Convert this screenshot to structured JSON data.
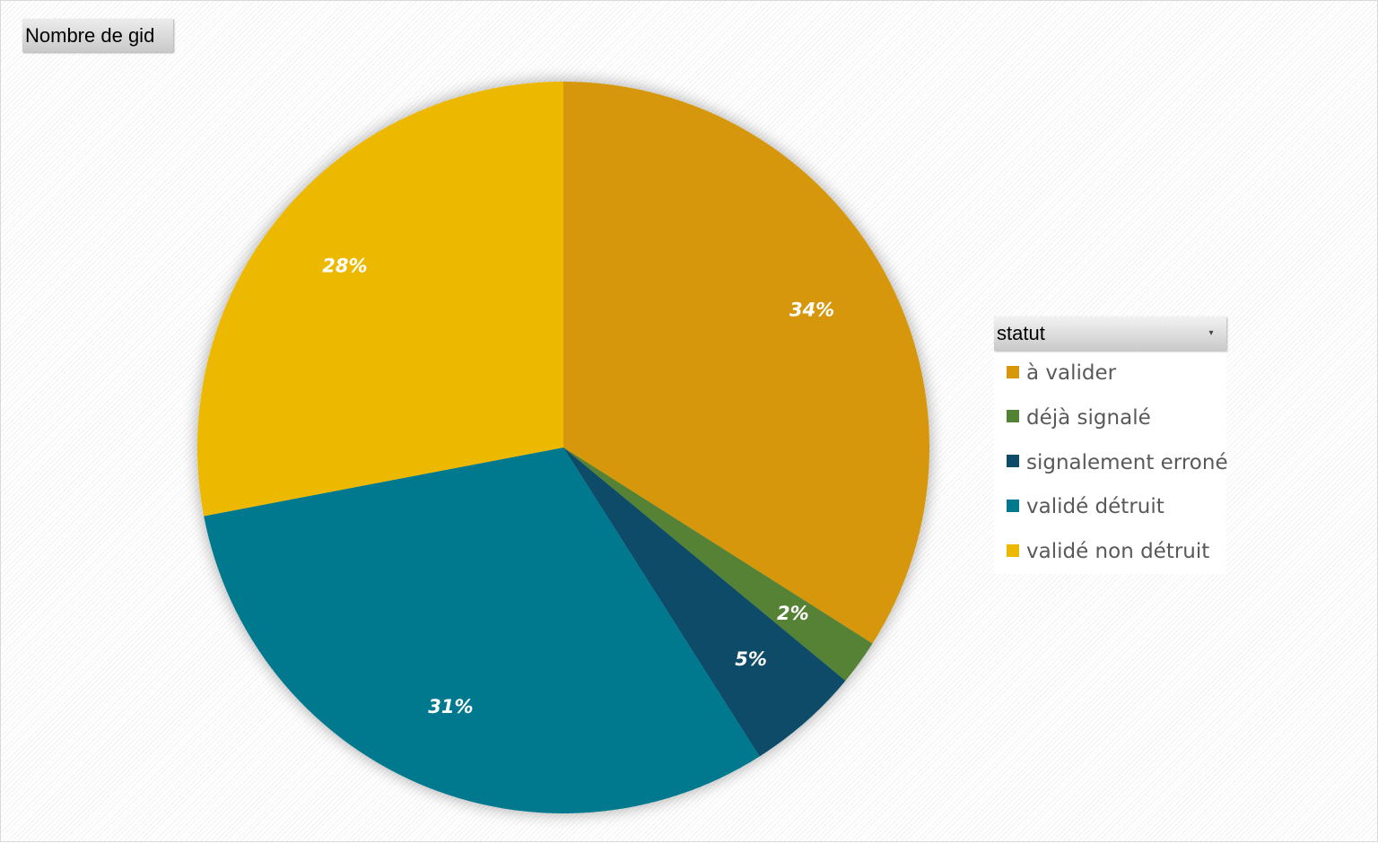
{
  "value_field_button": "Nombre de gid",
  "legend": {
    "header": "statut"
  },
  "chart_data": {
    "type": "pie",
    "title": "",
    "legend_position": "right",
    "start_angle_deg": 0,
    "categories": [
      "à valider",
      "déjà signalé",
      "signalement erroné",
      "validé détruit",
      "validé non détruit"
    ],
    "values": [
      34,
      2,
      5,
      31,
      28
    ],
    "labels": [
      "34%",
      "2%",
      "5%",
      "31%",
      "28%"
    ],
    "colors": [
      "#D6970A",
      "#548235",
      "#0E4B67",
      "#02798E",
      "#EDB900"
    ]
  }
}
